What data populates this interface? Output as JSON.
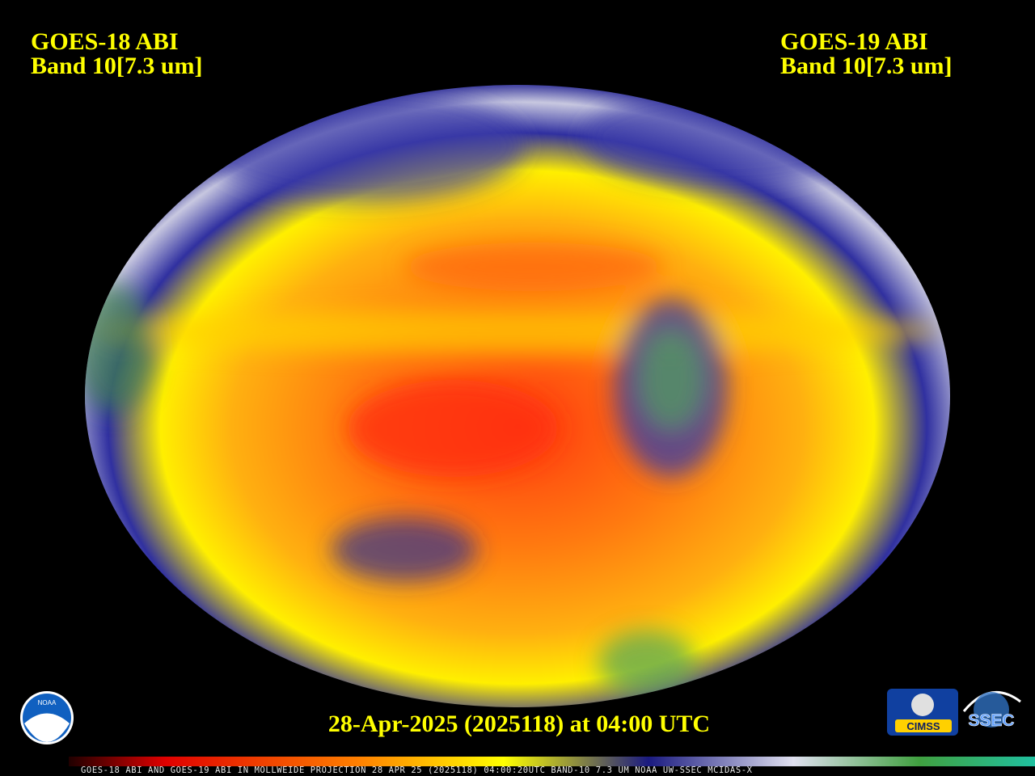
{
  "header": {
    "left": {
      "satellite": "GOES-18 ABI",
      "band": "Band 10[7.3 um]"
    },
    "right": {
      "satellite": "GOES-19 ABI",
      "band": "Band 10[7.3 um]"
    }
  },
  "timestamp": "28-Apr-2025 (2025118) at 04:00 UTC",
  "logos": {
    "noaa": "NOAA",
    "cimss": "CIMSS",
    "ssec": "SSEC"
  },
  "colorbar": {
    "caption": "GOES-18 ABI AND GOES-19 ABI IN MOLLWEIDE PROJECTION 28 APR 25 (2025118) 04:00:20UTC BAND-10 7.3 UM NOAA UW-SSEC MCIDAS-X"
  }
}
